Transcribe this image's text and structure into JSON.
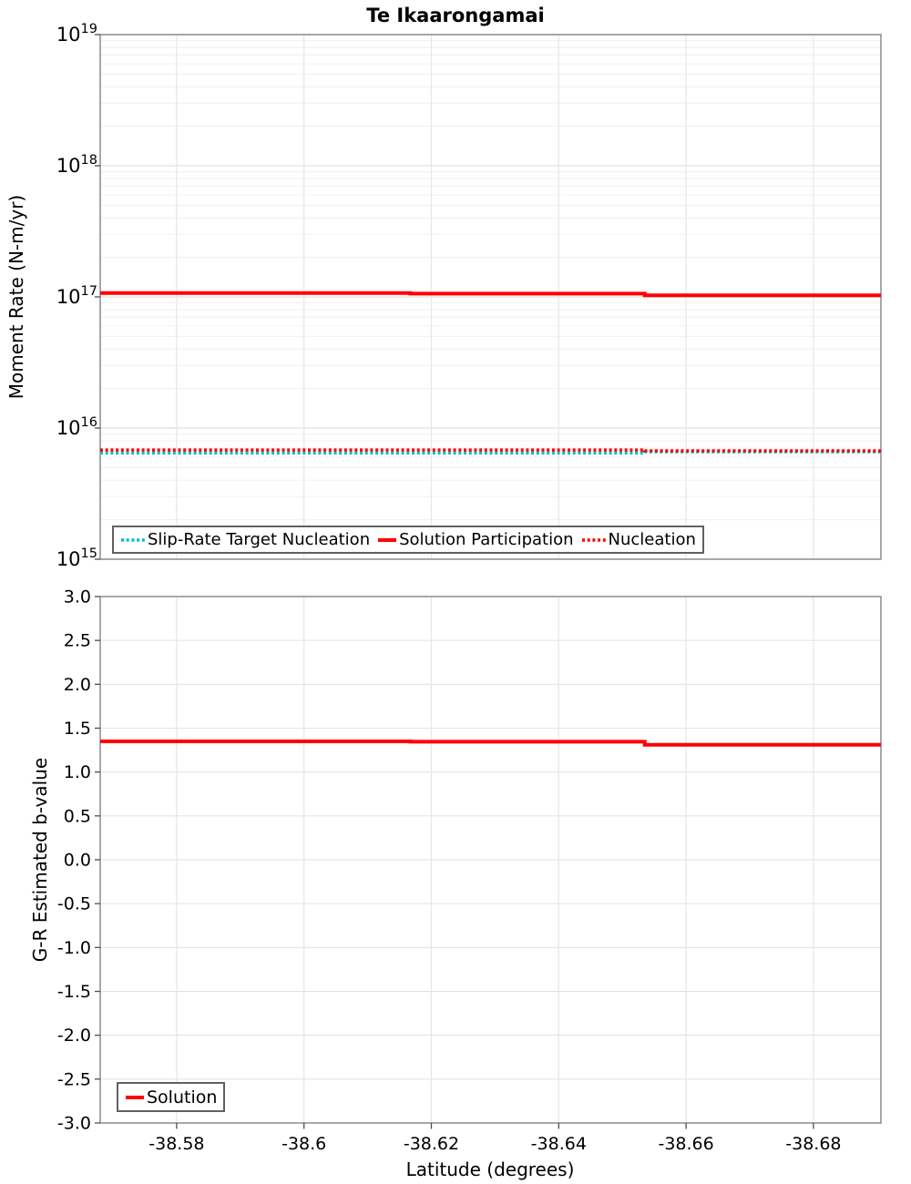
{
  "figure": {
    "title": "Te Ikaarongamai"
  },
  "colors": {
    "solution_red": "#FF0000",
    "slip_rate_cyan": "#00BFC9",
    "grid_minor": "#F0F0F0",
    "grid_major": "#E1E1E1",
    "grid_vertical": "#E6E6E6",
    "plot_border": "#8C8C8C",
    "tick": "#4D4D4D",
    "text": "#000000"
  },
  "chart_data": [
    {
      "type": "line",
      "title": "Te Ikaarongamai",
      "ylabel": "Moment Rate (N-m/yr)",
      "xlabel": "",
      "yscale": "log",
      "ylim": [
        1000000000000000.0,
        1e+19
      ],
      "ytick_exponents": [
        19,
        18,
        17,
        16,
        15
      ],
      "xlim": [
        -38.568,
        -38.6906
      ],
      "xticks": [
        -38.58,
        -38.6,
        -38.62,
        -38.64,
        -38.66,
        -38.68
      ],
      "xtick_labels": [
        "-38.58",
        "-38.6",
        "-38.62",
        "-38.64",
        "-38.66",
        "-38.68"
      ],
      "grid": true,
      "legend_position": "bottom-inside",
      "series": [
        {
          "name": "Slip-Rate Target Nucleation",
          "color": "#00BFC9",
          "style": "dotted",
          "points": [
            [
              -38.568,
              6450000000000000.0
            ],
            [
              -38.6167,
              6450000000000000.0
            ],
            [
              -38.6535,
              6450000000000000.0
            ],
            [
              -38.6535,
              6600000000000000.0
            ],
            [
              -38.6906,
              6600000000000000.0
            ]
          ]
        },
        {
          "name": "Nucleation",
          "color": "#FF0000",
          "style": "dotted",
          "points": [
            [
              -38.568,
              6800000000000000.0
            ],
            [
              -38.6167,
              6800000000000000.0
            ],
            [
              -38.6535,
              6800000000000000.0
            ],
            [
              -38.6535,
              6700000000000000.0
            ],
            [
              -38.6906,
              6700000000000000.0
            ]
          ]
        },
        {
          "name": "Solution Participation",
          "color": "#FF0000",
          "style": "solid",
          "points": [
            [
              -38.568,
              1.07e+17
            ],
            [
              -38.6167,
              1.07e+17
            ],
            [
              -38.6167,
              1.06e+17
            ],
            [
              -38.6535,
              1.06e+17
            ],
            [
              -38.6535,
              1.03e+17
            ],
            [
              -38.6906,
              1.03e+17
            ]
          ]
        }
      ],
      "legend_order": [
        "Slip-Rate Target Nucleation",
        "Solution Participation",
        "Nucleation"
      ]
    },
    {
      "type": "line",
      "title": "",
      "ylabel": "G-R Estimated b-value",
      "xlabel": "Latitude (degrees)",
      "yscale": "linear",
      "ylim": [
        -3.0,
        3.0
      ],
      "yticks": [
        3.0,
        2.5,
        2.0,
        1.5,
        1.0,
        0.5,
        0.0,
        -0.5,
        -1.0,
        -1.5,
        -2.0,
        -2.5,
        -3.0
      ],
      "ytick_labels": [
        "3.0",
        "2.5",
        "2.0",
        "1.5",
        "1.0",
        "0.5",
        "0.0",
        "-0.5",
        "-1.0",
        "-1.5",
        "-2.0",
        "-2.5",
        "-3.0"
      ],
      "xlim": [
        -38.568,
        -38.6906
      ],
      "xticks": [
        -38.58,
        -38.6,
        -38.62,
        -38.64,
        -38.66,
        -38.68
      ],
      "xtick_labels": [
        "-38.58",
        "-38.6",
        "-38.62",
        "-38.64",
        "-38.66",
        "-38.68"
      ],
      "grid": true,
      "legend_position": "bottom-left-inside",
      "series": [
        {
          "name": "Solution",
          "color": "#FF0000",
          "style": "solid",
          "points": [
            [
              -38.568,
              1.35
            ],
            [
              -38.6167,
              1.35
            ],
            [
              -38.6167,
              1.345
            ],
            [
              -38.6535,
              1.345
            ],
            [
              -38.6535,
              1.31
            ],
            [
              -38.6906,
              1.31
            ]
          ]
        }
      ],
      "legend_order": [
        "Solution"
      ]
    }
  ]
}
